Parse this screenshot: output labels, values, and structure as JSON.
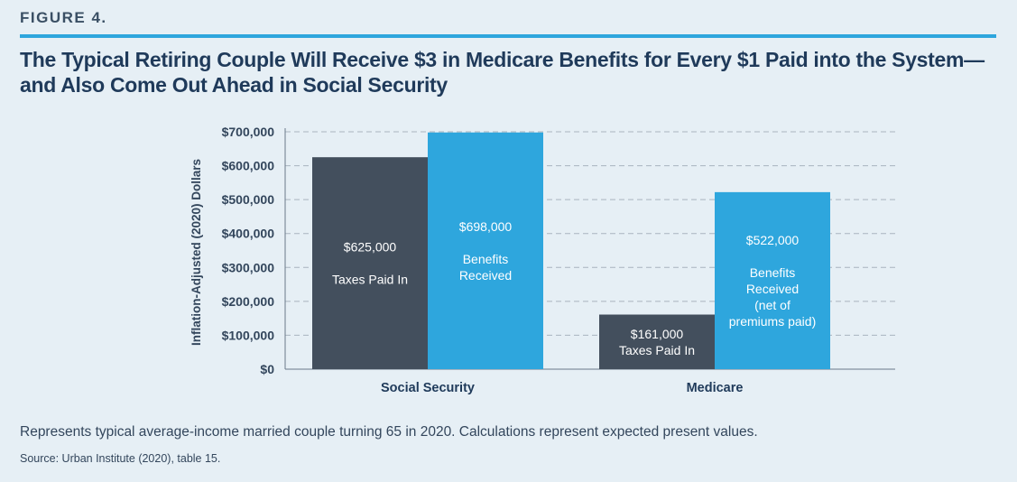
{
  "figure_label": "FIGURE 4.",
  "title": "The Typical Retiring Couple Will Receive $3 in Medicare Benefits for Every $1 Paid into the System—and Also Come Out Ahead in Social Security",
  "note": "Represents typical average-income married couple turning 65 in 2020. Calculations represent expected present values.",
  "source": "Source: Urban Institute (2020), table 15.",
  "colors": {
    "taxes": "#434f5d",
    "benefits": "#2ea6dd",
    "grid": "#a9b4bf"
  },
  "chart_data": {
    "type": "bar",
    "categories": [
      "Social Security",
      "Medicare"
    ],
    "series": [
      {
        "key": "taxes",
        "values": [
          625000,
          161000
        ]
      },
      {
        "key": "benefits",
        "values": [
          698000,
          522000
        ]
      }
    ],
    "bar_labels": [
      [
        [
          "$625,000",
          "",
          "Taxes Paid In"
        ],
        [
          "$698,000",
          "",
          "Benefits",
          "Received"
        ]
      ],
      [
        [
          "$161,000",
          "Taxes Paid In"
        ],
        [
          "$522,000",
          "",
          "Benefits",
          "Received",
          "(net of",
          "premiums paid)"
        ]
      ]
    ],
    "ylabel": "Inflation-Adjusted (2020) Dollars",
    "ylim": [
      0,
      700000
    ],
    "yticks": [
      0,
      100000,
      200000,
      300000,
      400000,
      500000,
      600000,
      700000
    ],
    "ytick_labels": [
      "$0",
      "$100,000",
      "$200,000",
      "$300,000",
      "$400,000",
      "$500,000",
      "$600,000",
      "$700,000"
    ],
    "grid": true
  }
}
